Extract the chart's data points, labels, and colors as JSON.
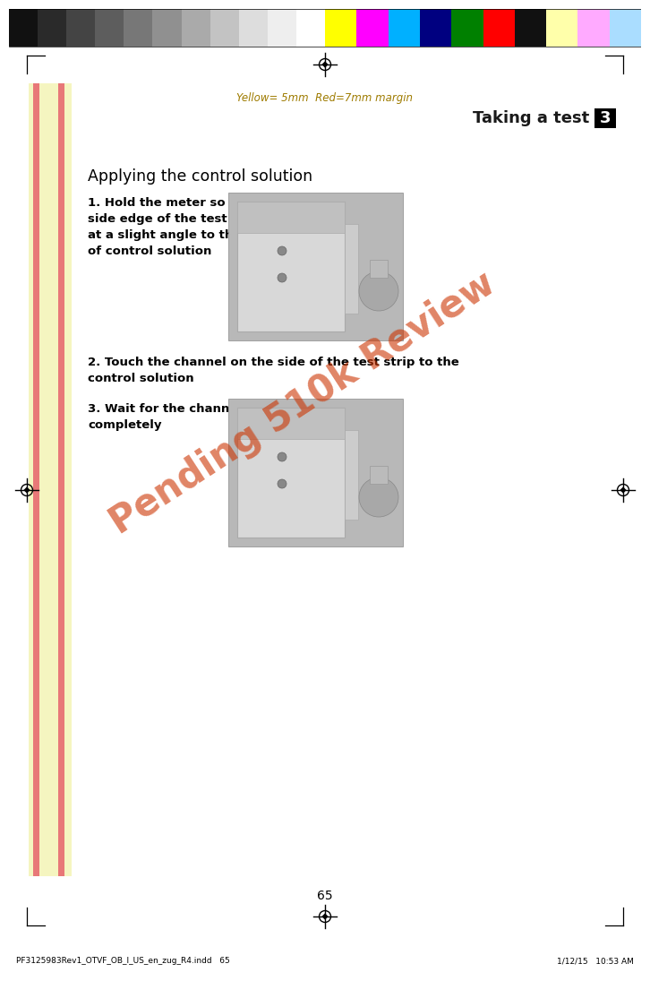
{
  "page_width": 7.06,
  "page_height": 10.75,
  "dpi": 100,
  "bg_color": "#ffffff",
  "yellow_bg": "#f5f5c0",
  "red_bar_color": "#e87878",
  "margin_text": "Yellow= 5mm  Red=7mm margin",
  "margin_text_color": "#9e7b00",
  "header_title": "Taking a test",
  "header_number": "3",
  "section_title": "Applying the control solution",
  "step1_text": "1. Hold the meter so that the\nside edge of the test strip is\nat a slight angle to the drop\nof control solution",
  "step2_text": "2. Touch the channel on the side of the test strip to the\ncontrol solution",
  "step3_text": "3. Wait for the channel to fill\ncompletely",
  "watermark_text": "Pending 510k Review",
  "watermark_color": "#cc3300",
  "page_number": "65",
  "footer_left": "PF3125983Rev1_OTVF_OB_I_US_en_zug_R4.indd   65",
  "footer_right": "1/12/15   10:53 AM",
  "gray_shades": [
    "#111111",
    "#2a2a2a",
    "#444444",
    "#5d5d5d",
    "#777777",
    "#909090",
    "#aaaaaa",
    "#c3c3c3",
    "#dddddd",
    "#eeeeee",
    "#ffffff"
  ],
  "color_bars": [
    "#ffff00",
    "#ff00ff",
    "#00b0ff",
    "#000080",
    "#008000",
    "#ff0000",
    "#111111",
    "#ffffaa",
    "#ffaaff",
    "#aaddff"
  ]
}
